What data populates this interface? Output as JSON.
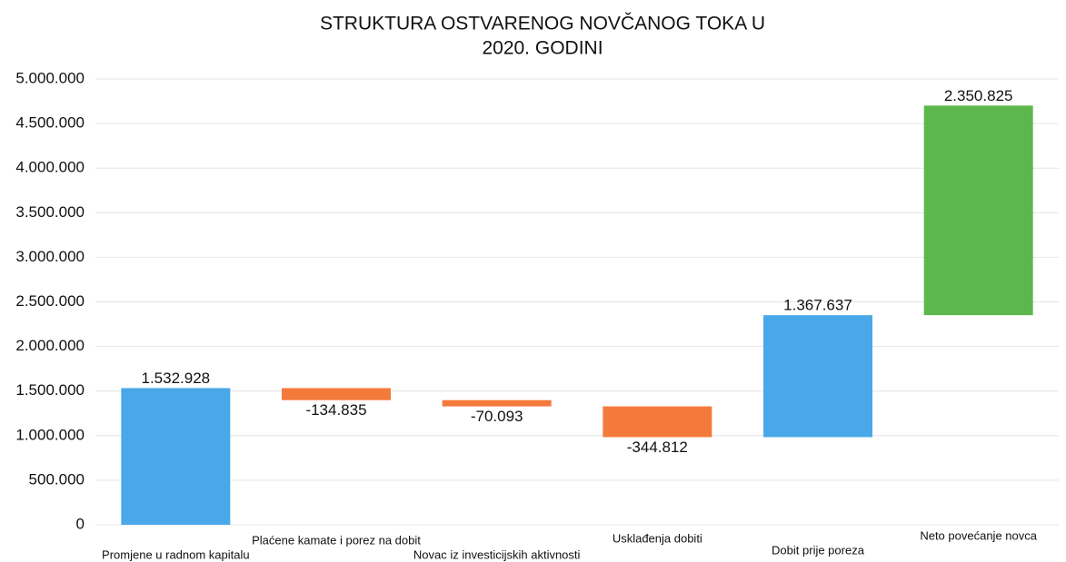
{
  "chart_data": {
    "type": "waterfall",
    "title": [
      "STRUKTURA OSTVARENOG NOVČANOG TOKA U",
      "2020. GODINI"
    ],
    "categories": [
      "Promjene u radnom kapitalu",
      "Plaćene kamate i porez na dobit",
      "Novac iz investicijskih aktivnosti",
      "Usklađenja dobiti",
      "Dobit prije poreza",
      "Neto povećanje novca"
    ],
    "values": [
      1532928,
      -134835,
      -70093,
      -344812,
      1367637,
      2350825
    ],
    "value_labels": [
      "1.532.928",
      "-134.835",
      "-70.093",
      "-344.812",
      "1.367.637",
      "2.350.825"
    ],
    "colors": [
      "#4aa8e8",
      "#f47a3c",
      "#f47a3c",
      "#f47a3c",
      "#4aa8e8",
      "#5cb84c"
    ],
    "ylim": [
      0,
      5000000
    ],
    "yticks": [
      0,
      {
        "value": 500000,
        "label": "500.000"
      },
      {
        "value": 1000000,
        "label": "1.000.000"
      },
      {
        "value": 1500000,
        "label": "1.500.000"
      },
      {
        "value": 2000000,
        "label": "2.000.000"
      },
      {
        "value": 2500000,
        "label": "2.500.000"
      },
      {
        "value": 3000000,
        "label": "3.000.000"
      },
      {
        "value": 3500000,
        "label": "3.500.000"
      },
      {
        "value": 4000000,
        "label": "4.000.000"
      },
      {
        "value": 4500000,
        "label": "4.500.000"
      },
      {
        "value": 5000000,
        "label": "5.000.000"
      }
    ],
    "grid": true
  }
}
